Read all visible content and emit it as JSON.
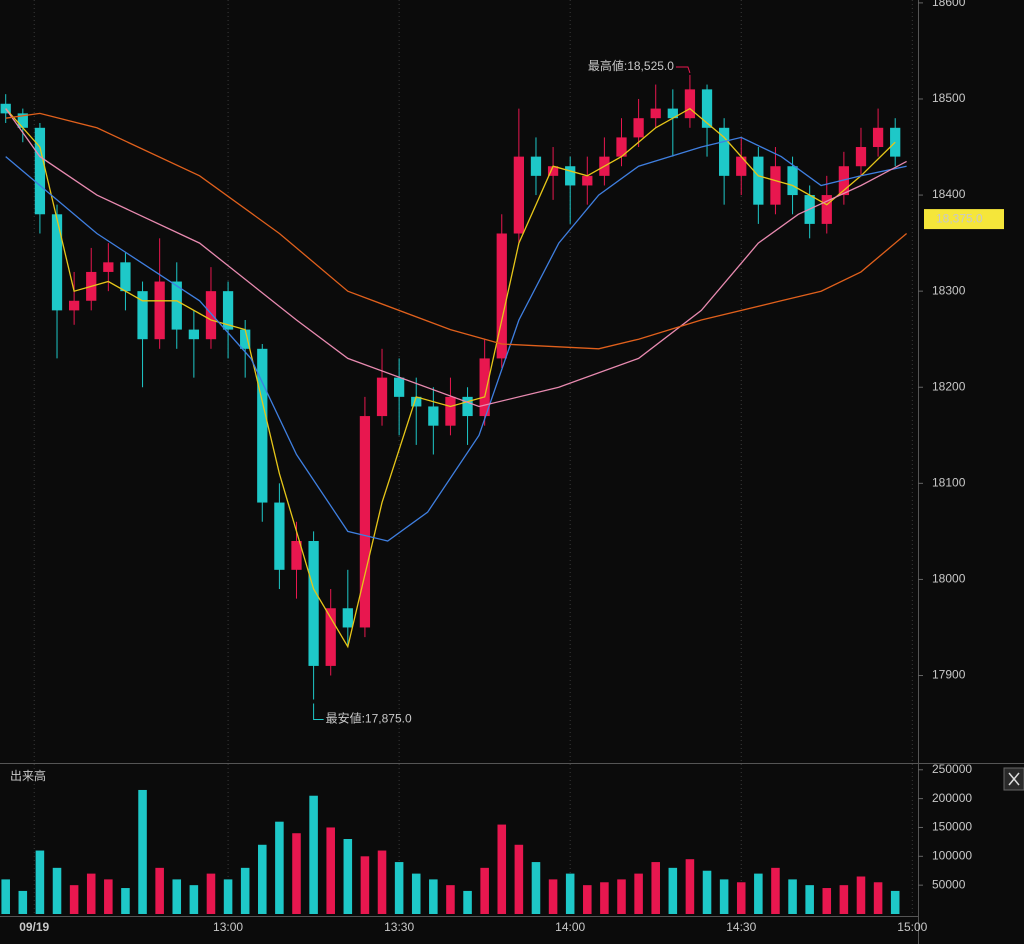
{
  "chart_data": [
    {
      "type": "candlestick",
      "x": [
        "12:21",
        "12:24",
        "12:27",
        "12:30",
        "12:33",
        "12:36",
        "12:39",
        "12:42",
        "12:45",
        "12:48",
        "12:51",
        "12:54",
        "12:57",
        "13:00",
        "13:03",
        "13:06",
        "13:09",
        "13:12",
        "13:15",
        "13:18",
        "13:21",
        "13:24",
        "13:27",
        "13:30",
        "13:33",
        "13:36",
        "13:39",
        "13:42",
        "13:45",
        "13:48",
        "13:51",
        "13:54",
        "13:57",
        "14:00",
        "14:03",
        "14:06",
        "14:09",
        "14:12",
        "14:15",
        "14:18",
        "14:21",
        "14:24",
        "14:27",
        "14:30",
        "14:33",
        "14:36",
        "14:39",
        "14:42",
        "14:45",
        "14:48",
        "14:51",
        "14:54",
        "14:57"
      ],
      "open": [
        18495,
        18485,
        18470,
        18380,
        18280,
        18290,
        18320,
        18330,
        18300,
        18250,
        18310,
        18260,
        18250,
        18300,
        18260,
        18240,
        18080,
        18010,
        18040,
        17910,
        17970,
        17950,
        18170,
        18210,
        18190,
        18180,
        18160,
        18190,
        18170,
        18230,
        18360,
        18440,
        18420,
        18430,
        18410,
        18420,
        18440,
        18460,
        18480,
        18490,
        18480,
        18510,
        18470,
        18420,
        18440,
        18390,
        18430,
        18400,
        18370,
        18400,
        18430,
        18450,
        18470
      ],
      "high": [
        18505,
        18490,
        18475,
        18390,
        18320,
        18345,
        18350,
        18340,
        18310,
        18355,
        18330,
        18280,
        18325,
        18310,
        18270,
        18245,
        18100,
        18060,
        18050,
        17990,
        18010,
        18190,
        18240,
        18230,
        18210,
        18200,
        18210,
        18200,
        18250,
        18380,
        18490,
        18460,
        18450,
        18440,
        18440,
        18460,
        18480,
        18500,
        18515,
        18510,
        18525,
        18515,
        18480,
        18460,
        18450,
        18450,
        18440,
        18410,
        18420,
        18445,
        18470,
        18490,
        18480
      ],
      "low": [
        18475,
        18455,
        18360,
        18230,
        18265,
        18280,
        18300,
        18280,
        18200,
        18240,
        18240,
        18210,
        18240,
        18230,
        18210,
        18060,
        17990,
        17980,
        17875,
        17900,
        17930,
        17940,
        18160,
        18150,
        18140,
        18130,
        18150,
        18140,
        18160,
        18220,
        18350,
        18400,
        18395,
        18370,
        18390,
        18410,
        18430,
        18450,
        18470,
        18440,
        18470,
        18440,
        18390,
        18400,
        18370,
        18380,
        18380,
        18355,
        18360,
        18390,
        18420,
        18440,
        18430
      ],
      "close": [
        18485,
        18470,
        18380,
        18280,
        18290,
        18320,
        18330,
        18300,
        18250,
        18310,
        18260,
        18250,
        18300,
        18260,
        18240,
        18080,
        18010,
        18040,
        17910,
        17970,
        17950,
        18170,
        18210,
        18190,
        18180,
        18160,
        18190,
        18170,
        18230,
        18360,
        18440,
        18420,
        18430,
        18410,
        18420,
        18440,
        18460,
        18480,
        18490,
        18480,
        18510,
        18470,
        18420,
        18440,
        18390,
        18430,
        18400,
        18370,
        18400,
        18430,
        18450,
        18470,
        18440
      ],
      "up_color": "#e8174f",
      "down_color": "#1ec8c8",
      "xlim": [
        "12:20",
        "15:01"
      ],
      "ylim": [
        17810,
        18603
      ],
      "yticks": [
        17900,
        18000,
        18100,
        18200,
        18300,
        18400,
        18500,
        18600
      ],
      "lines": [
        {
          "color": "#e6c619",
          "x": [
            "12:21",
            "12:27",
            "12:33",
            "12:39",
            "12:45",
            "12:51",
            "12:57",
            "13:03",
            "13:09",
            "13:15",
            "13:21",
            "13:27",
            "13:33",
            "13:39",
            "13:45",
            "13:51",
            "13:57",
            "14:03",
            "14:09",
            "14:15",
            "14:21",
            "14:27",
            "14:33",
            "14:39",
            "14:45",
            "14:51",
            "14:57"
          ],
          "values": [
            18490,
            18450,
            18300,
            18310,
            18290,
            18290,
            18270,
            18260,
            18110,
            17990,
            17930,
            18080,
            18190,
            18180,
            18190,
            18350,
            18430,
            18420,
            18440,
            18470,
            18490,
            18460,
            18420,
            18410,
            18390,
            18420,
            18455
          ]
        },
        {
          "color": "#3f7fe0",
          "x": [
            "12:21",
            "12:37",
            "12:55",
            "13:04",
            "13:12",
            "13:21",
            "13:28",
            "13:35",
            "13:44",
            "13:51",
            "13:58",
            "14:05",
            "14:12",
            "14:23",
            "14:30",
            "14:37",
            "14:44",
            "14:51",
            "14:59"
          ],
          "values": [
            18440,
            18360,
            18290,
            18230,
            18130,
            18050,
            18040,
            18070,
            18150,
            18270,
            18350,
            18400,
            18430,
            18450,
            18460,
            18440,
            18410,
            18420,
            18430
          ]
        },
        {
          "color": "#e88ab0",
          "x": [
            "12:21",
            "12:27",
            "12:37",
            "12:55",
            "13:12",
            "13:21",
            "13:44",
            "13:58",
            "14:12",
            "14:23",
            "14:33",
            "14:40",
            "14:51",
            "14:59"
          ],
          "values": [
            18490,
            18440,
            18400,
            18350,
            18270,
            18230,
            18180,
            18200,
            18230,
            18280,
            18350,
            18380,
            18410,
            18435
          ]
        },
        {
          "color": "#e0601c",
          "x": [
            "12:21",
            "12:27",
            "12:37",
            "12:55",
            "13:09",
            "13:21",
            "13:39",
            "13:48",
            "14:05",
            "14:12",
            "14:23",
            "14:37",
            "14:44",
            "14:51",
            "14:59"
          ],
          "values": [
            18480,
            18485,
            18470,
            18420,
            18360,
            18300,
            18260,
            18245,
            18240,
            18250,
            18270,
            18290,
            18300,
            18320,
            18360
          ]
        }
      ],
      "annotations": [
        {
          "text": "最高値:18,525.0",
          "x": "14:21",
          "y": 18525,
          "color": "#e8174f"
        },
        {
          "text": "最安値:17,875.0",
          "x": "13:15",
          "y": 17875,
          "color": "#1ec8c8"
        }
      ],
      "price_marker": {
        "value": 18375,
        "label": "18,375.0"
      }
    },
    {
      "type": "bar",
      "title": "出来高",
      "values": [
        60000,
        40000,
        110000,
        80000,
        50000,
        70000,
        60000,
        45000,
        215000,
        80000,
        60000,
        50000,
        70000,
        60000,
        80000,
        120000,
        160000,
        140000,
        205000,
        150000,
        130000,
        100000,
        110000,
        90000,
        70000,
        60000,
        50000,
        40000,
        80000,
        155000,
        120000,
        90000,
        60000,
        70000,
        50000,
        55000,
        60000,
        70000,
        90000,
        80000,
        95000,
        75000,
        60000,
        55000,
        70000,
        80000,
        60000,
        50000,
        45000,
        50000,
        65000,
        55000,
        40000
      ],
      "ylim": [
        0,
        260000
      ],
      "yticks": [
        50000,
        100000,
        150000,
        200000,
        250000
      ],
      "xticks": [
        {
          "value": "12:26",
          "label": "09/19"
        },
        "13:00",
        "13:30",
        "14:00",
        "14:30",
        "15:00"
      ]
    }
  ]
}
